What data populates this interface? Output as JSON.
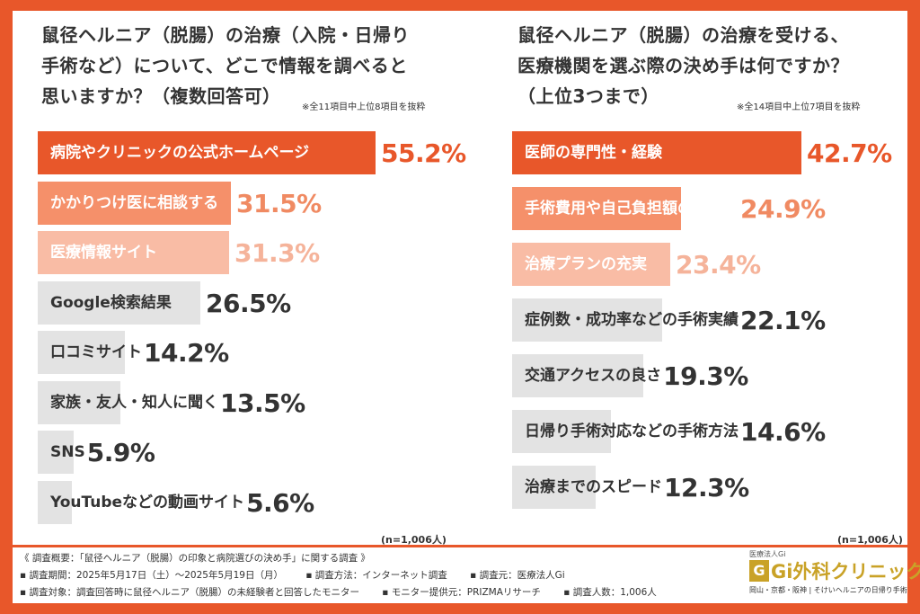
{
  "left": {
    "title_lines": [
      "鼠径ヘルニア（脱腸）の治療（入院・日帰り",
      "手術など）について、どこで情報を調べると",
      "思いますか？（複数回答可）"
    ],
    "note": "※全11項目中上位8項目を抜粋",
    "sample": "(n=1,006人)"
  },
  "right": {
    "title_lines": [
      "鼠径ヘルニア（脱腸）の治療を受ける、",
      "医療機関を選ぶ際の決め手は何ですか？",
      "（上位3つまで）"
    ],
    "note": "※全14項目中上位7項目を抜粋",
    "sample": "(n=1,006人)"
  },
  "chart_data": [
    {
      "type": "bar",
      "orientation": "horizontal",
      "title": "鼠径ヘルニア（脱腸）の治療（入院・日帰り手術など）について、どこで情報を調べると思いますか？（複数回答可）",
      "unit": "%",
      "xlim": [
        0,
        55.2
      ],
      "categories": [
        "病院やクリニックの公式ホームページ",
        "かかりつけ医に相談する",
        "医療情報サイト",
        "Google検索結果",
        "口コミサイト",
        "家族・友人・知人に聞く",
        "SNS",
        "YouTubeなどの動画サイト"
      ],
      "values": [
        55.2,
        31.5,
        31.3,
        26.5,
        14.2,
        13.5,
        5.9,
        5.6
      ],
      "value_labels": [
        "55.2%",
        "31.5%",
        "31.3%",
        "26.5%",
        "14.2%",
        "13.5%",
        "5.9%",
        "5.6%"
      ],
      "colors": {
        "bars": [
          "#e8572a",
          "#f5906a",
          "#f9bca5",
          "#e3e3e3",
          "#e3e3e3",
          "#e3e3e3",
          "#e3e3e3",
          "#e3e3e3"
        ],
        "labels": [
          "#ffffff",
          "#ffffff",
          "#ffffff",
          "#333333",
          "#333333",
          "#333333",
          "#333333",
          "#333333"
        ],
        "values": [
          "#e8572a",
          "#f08a62",
          "#f5b39a",
          "#333333",
          "#333333",
          "#333333",
          "#333333",
          "#333333"
        ]
      }
    },
    {
      "type": "bar",
      "orientation": "horizontal",
      "title": "鼠径ヘルニア（脱腸）の治療を受ける、医療機関を選ぶ際の決め手は何ですか？（上位3つまで）",
      "unit": "%",
      "xlim": [
        0,
        42.7
      ],
      "categories": [
        "医師の専門性・経験",
        "手術費用や自己負担額の明確さ",
        "治療プランの充実",
        "症例数・成功率などの手術実績",
        "交通アクセスの良さ",
        "日帰り手術対応などの手術方法",
        "治療までのスピード"
      ],
      "values": [
        42.7,
        24.9,
        23.4,
        22.1,
        19.3,
        14.6,
        12.3
      ],
      "value_labels": [
        "42.7%",
        "24.9%",
        "23.4%",
        "22.1%",
        "19.3%",
        "14.6%",
        "12.3%"
      ],
      "colors": {
        "bars": [
          "#e8572a",
          "#f5906a",
          "#f9bca5",
          "#e3e3e3",
          "#e3e3e3",
          "#e3e3e3",
          "#e3e3e3"
        ],
        "labels": [
          "#ffffff",
          "#ffffff",
          "#ffffff",
          "#333333",
          "#333333",
          "#333333",
          "#333333"
        ],
        "values": [
          "#e8572a",
          "#f08a62",
          "#f5b39a",
          "#333333",
          "#333333",
          "#333333",
          "#333333"
        ]
      }
    }
  ],
  "footer": {
    "line1": "《 調査概要：「鼠径ヘルニア（脱腸）の印象と病院選びの決め手」に関する調査 》",
    "line2": [
      "▪ 調査期間：2025年5月17日（土）～2025年5月19日（月）",
      "▪ 調査方法：インターネット調査",
      "▪ 調査元：医療法人Gi"
    ],
    "line3": [
      "▪ 調査対象：調査回答時に鼠径ヘルニア（脱腸）の未経験者と回答したモニター",
      "▪ モニター提供元：PRIZMAリサーチ",
      "▪ 調査人数：1,006人"
    ]
  },
  "logo": {
    "top": "医療法人Gi",
    "mark": "G",
    "name": "Gi外科クリニック",
    "sub": "岡山・京都・阪神 | そけいヘルニアの日帰り手術"
  }
}
